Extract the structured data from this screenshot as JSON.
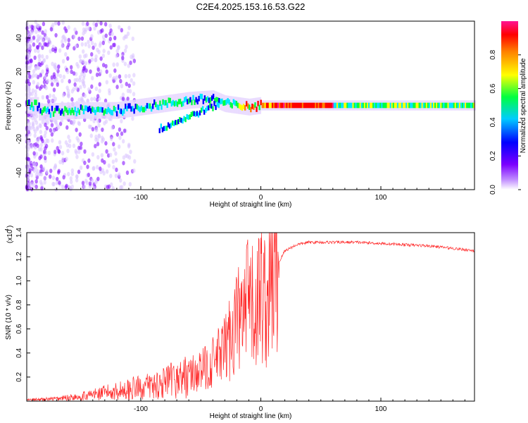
{
  "chart_data": [
    {
      "type": "heatmap",
      "title": "C2E4.2025.153.16.53.G22",
      "xlabel": "Height of straight line (km)",
      "ylabel": "Frequency (Hz)",
      "xlim": [
        -195,
        178
      ],
      "ylim": [
        -50,
        50
      ],
      "x_ticks": [
        "-100",
        "0",
        "100"
      ],
      "y_ticks": [
        "40",
        "20",
        "0",
        "-20",
        "-40"
      ],
      "colorbar": {
        "label": "Normalized spectral amplitude",
        "range": [
          0,
          1
        ],
        "ticks": [
          "0.0",
          "0.2",
          "0.4",
          "0.6",
          "0.8"
        ],
        "colors": [
          "#ffffff",
          "#7b00ff",
          "#0000ff",
          "#00e5ff",
          "#00ff40",
          "#ffff00",
          "#ff8000",
          "#ff0000",
          "#ff1493"
        ]
      },
      "ridge": {
        "description_points_x": [
          -185,
          -150,
          -120,
          -100,
          -80,
          -60,
          -40,
          -30,
          -20,
          -10,
          0,
          20,
          60,
          100,
          140,
          178
        ],
        "description_points_y": [
          -4,
          -3,
          -3,
          -1,
          1,
          3,
          4,
          1,
          0,
          -1,
          0,
          0,
          0,
          0,
          0,
          0
        ]
      }
    },
    {
      "type": "line",
      "xlabel": "Height of straight line (km)",
      "ylabel": "SNR (10 * v/v)",
      "y_multiplier": "(x10",
      "y_multiplier_exp": "4",
      "y_multiplier_close": ")",
      "xlim": [
        -195,
        178
      ],
      "ylim": [
        0,
        1.4
      ],
      "x_ticks": [
        "-100",
        "0",
        "100"
      ],
      "y_ticks": [
        "0.2",
        "0.4",
        "0.6",
        "0.8",
        "1.0",
        "1.2",
        "1.4"
      ],
      "series": [
        {
          "color": "#ff2a2a",
          "x": [
            -195,
            -170,
            -150,
            -130,
            -110,
            -90,
            -70,
            -50,
            -40,
            -30,
            -25,
            -20,
            -15,
            -10,
            -5,
            0,
            5,
            10,
            15,
            20,
            30,
            40,
            60,
            80,
            100,
            120,
            140,
            160,
            178
          ],
          "y": [
            0.01,
            0.02,
            0.04,
            0.07,
            0.1,
            0.13,
            0.18,
            0.25,
            0.32,
            0.42,
            0.55,
            0.7,
            0.65,
            0.85,
            0.7,
            0.95,
            0.8,
            1.05,
            1.15,
            1.25,
            1.3,
            1.32,
            1.32,
            1.32,
            1.31,
            1.3,
            1.29,
            1.27,
            1.25
          ]
        }
      ]
    }
  ]
}
